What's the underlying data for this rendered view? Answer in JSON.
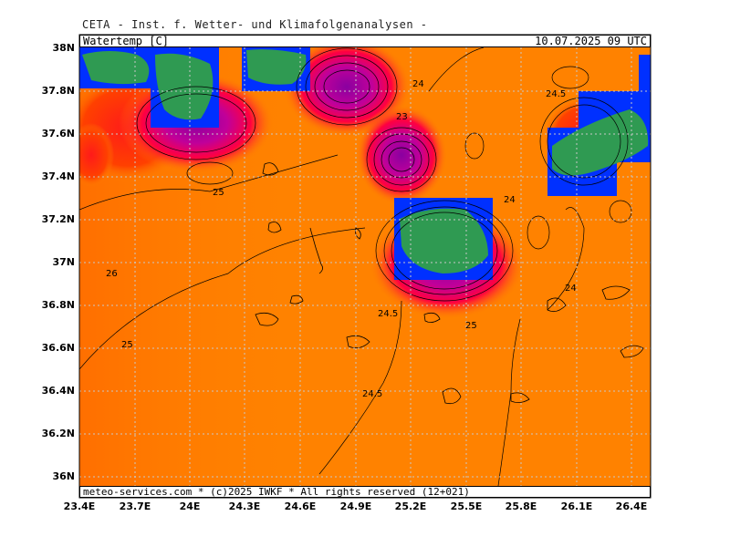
{
  "header": {
    "title": "CETA - Inst. f. Wetter- und Klimafolgenanalysen -",
    "variable": "Watertemp [C]",
    "datetime": "10.07.2025 09 UTC"
  },
  "footer": {
    "credit": "meteo-services.com * (c)2025 IWKF * All rights reserved (12+021)"
  },
  "axes": {
    "lat_labels": [
      "38N",
      "37.8N",
      "37.6N",
      "37.4N",
      "37.2N",
      "37N",
      "36.8N",
      "36.6N",
      "36.4N",
      "36.2N",
      "36N"
    ],
    "lon_labels": [
      "23.4E",
      "23.7E",
      "24E",
      "24.3E",
      "24.6E",
      "24.9E",
      "25.2E",
      "25.5E",
      "25.8E",
      "26.1E",
      "26.4E"
    ],
    "lat_range": [
      35.95,
      38.0
    ],
    "lon_range": [
      23.4,
      26.5
    ]
  },
  "colors": {
    "sea_main": "#ff8200",
    "sea_warm": "#ff6a00",
    "contour_hot": "#ff0032",
    "contour_magenta": "#b4009a",
    "land_green": "#2f9a52",
    "land_blue": "#0030ff",
    "grid": "#c8c8c8"
  },
  "contour_labels": [
    {
      "text": "24",
      "lat": 37.83,
      "lon": 25.43
    },
    {
      "text": "24.5",
      "lat": 37.78,
      "lon": 26.28
    },
    {
      "text": "25",
      "lat": 37.32,
      "lon": 24.15
    },
    {
      "text": "26",
      "lat": 36.96,
      "lon": 23.55
    },
    {
      "text": "25",
      "lat": 36.6,
      "lon": 23.63
    },
    {
      "text": "24.5",
      "lat": 36.78,
      "lon": 25.05
    },
    {
      "text": "24.5",
      "lat": 36.42,
      "lon": 25.0
    },
    {
      "text": "24",
      "lat": 37.28,
      "lon": 25.82
    },
    {
      "text": "24",
      "lat": 36.87,
      "lon": 26.22
    },
    {
      "text": "23",
      "lat": 37.67,
      "lon": 25.17
    },
    {
      "text": "25",
      "lat": 36.72,
      "lon": 25.49
    }
  ]
}
